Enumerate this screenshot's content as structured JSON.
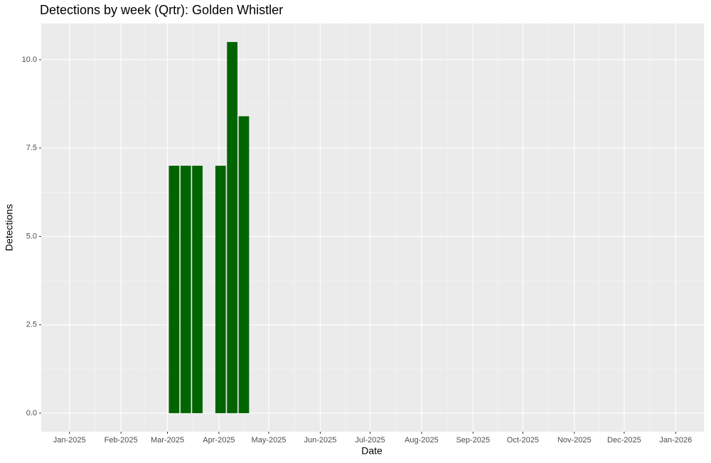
{
  "chart_data": {
    "type": "bar",
    "title": "Detections by week (Qrtr): Golden Whistler",
    "x_label": "Date",
    "y_label": "Detections",
    "x": [
      "2025-03-05",
      "2025-03-12",
      "2025-03-19",
      "2025-04-02",
      "2025-04-09",
      "2025-04-16"
    ],
    "values": [
      7,
      7,
      7,
      7,
      10.5,
      8.4
    ],
    "color": "#006400",
    "xlim": [
      "2024-12-15",
      "2026-01-18"
    ],
    "xticks": [
      {
        "value": "2025-01-01",
        "label": "Jan-2025"
      },
      {
        "value": "2025-02-01",
        "label": "Feb-2025"
      },
      {
        "value": "2025-03-01",
        "label": "Mar-2025"
      },
      {
        "value": "2025-04-01",
        "label": "Apr-2025"
      },
      {
        "value": "2025-05-01",
        "label": "May-2025"
      },
      {
        "value": "2025-06-01",
        "label": "Jun-2025"
      },
      {
        "value": "2025-07-01",
        "label": "Jul-2025"
      },
      {
        "value": "2025-08-01",
        "label": "Aug-2025"
      },
      {
        "value": "2025-09-01",
        "label": "Sep-2025"
      },
      {
        "value": "2025-10-01",
        "label": "Oct-2025"
      },
      {
        "value": "2025-11-01",
        "label": "Nov-2025"
      },
      {
        "value": "2025-12-01",
        "label": "Dec-2025"
      },
      {
        "value": "2026-01-01",
        "label": "Jan-2026"
      }
    ],
    "ylim": [
      -0.525,
      11.025
    ],
    "yticks": [
      {
        "value": 0,
        "label": "0.0"
      },
      2.5,
      {
        "value": 5,
        "label": "5.0"
      },
      7.5,
      {
        "value": 10,
        "label": "10.0"
      }
    ],
    "grid": true
  }
}
